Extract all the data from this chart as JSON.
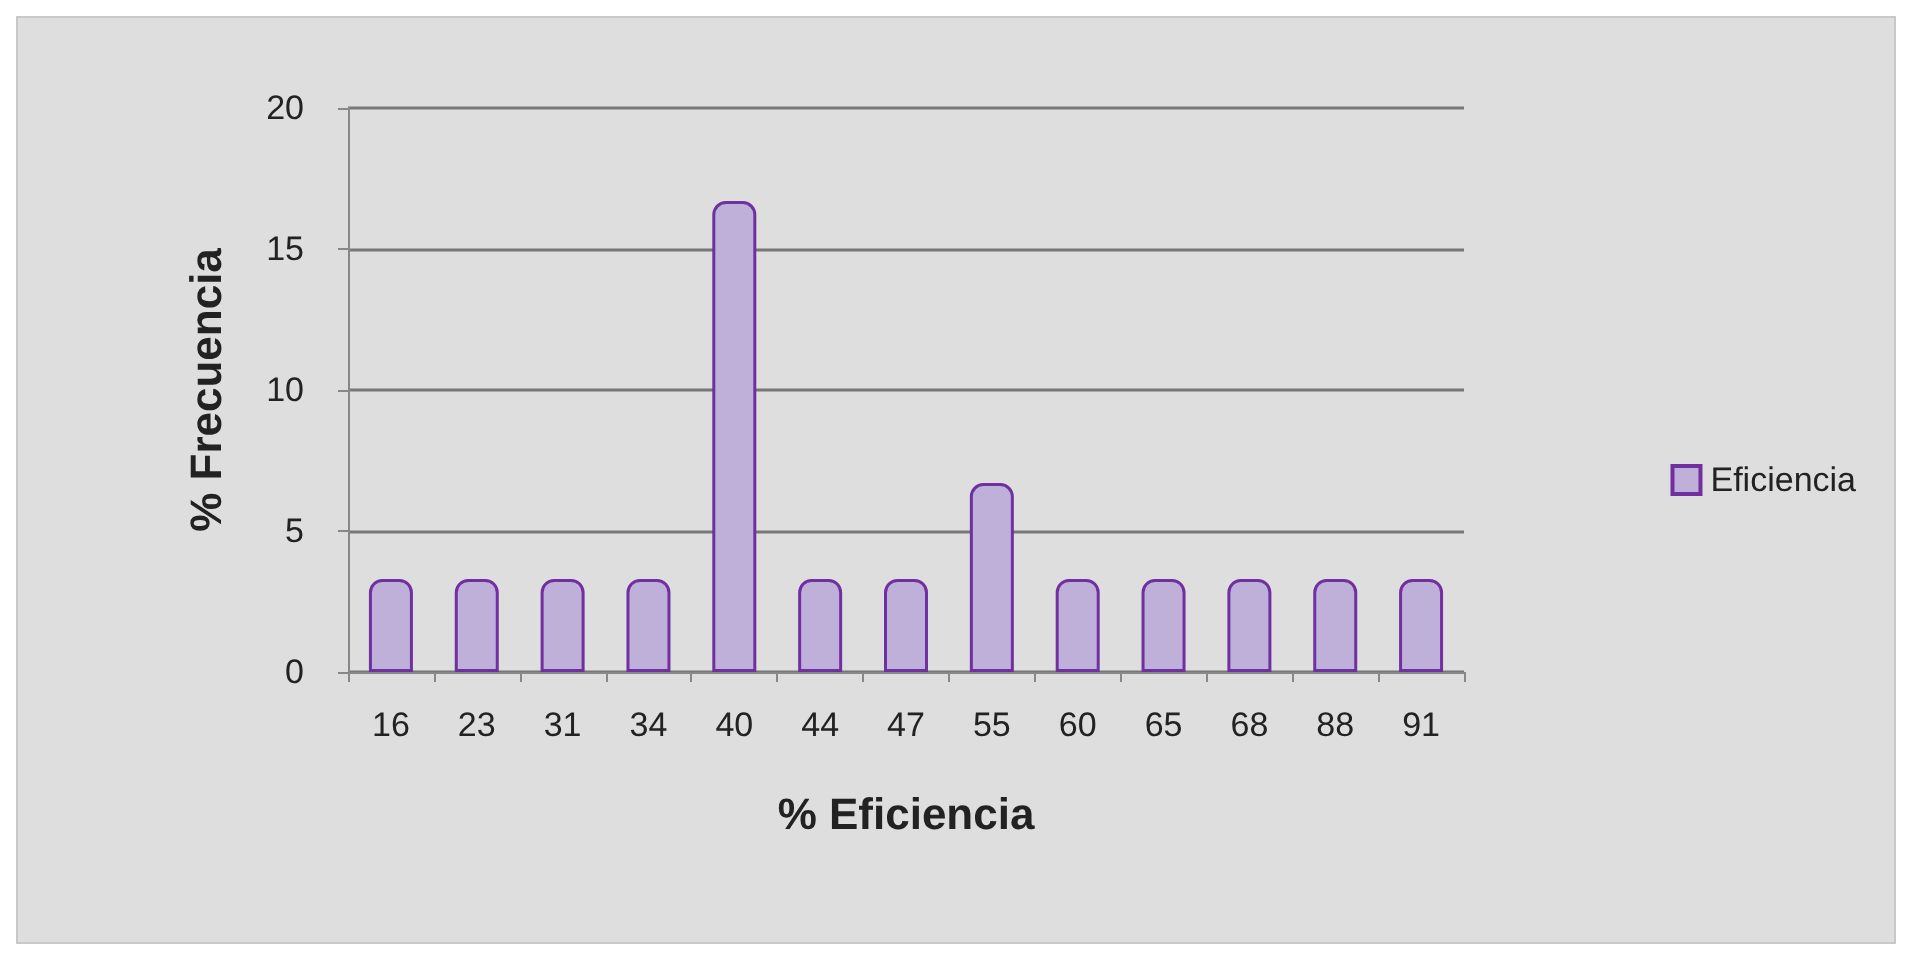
{
  "chart_data": {
    "type": "bar",
    "xlabel": "% Eficiencia",
    "ylabel": "% Frecuencia",
    "categories": [
      "16",
      "23",
      "31",
      "34",
      "40",
      "44",
      "47",
      "55",
      "60",
      "65",
      "68",
      "88",
      "91"
    ],
    "series": [
      {
        "name": "Eficiencia",
        "color": "#bfb0d9",
        "values": [
          3.3,
          3.3,
          3.3,
          3.3,
          16.7,
          3.3,
          3.3,
          6.7,
          3.3,
          3.3,
          3.3,
          3.3,
          3.3
        ]
      }
    ],
    "ylim": [
      0,
      20
    ],
    "yticks": [
      0,
      5,
      10,
      15,
      20
    ],
    "grid": "y",
    "legend": "right"
  }
}
